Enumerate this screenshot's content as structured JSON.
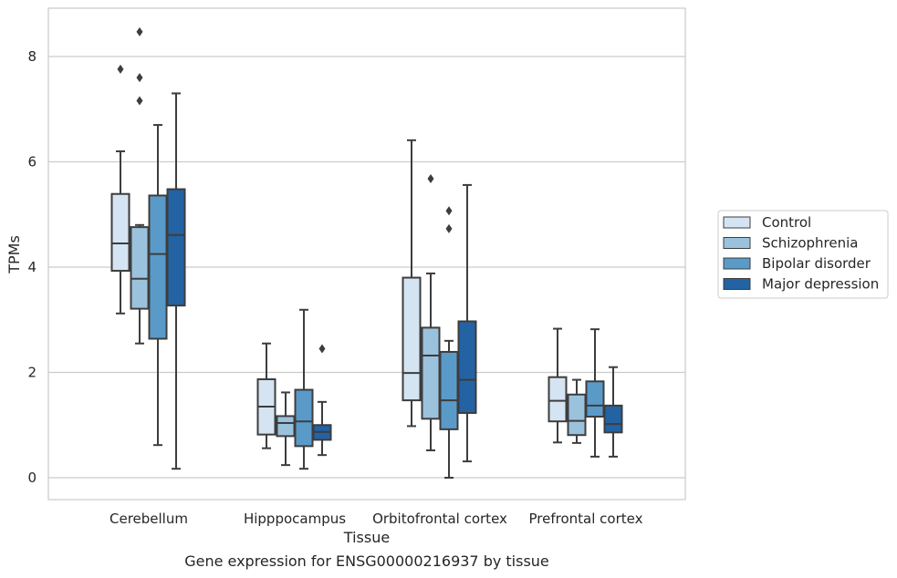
{
  "caption": "Gene expression for ENSG00000216937 by tissue",
  "chart_data": {
    "type": "boxplot",
    "xlabel": "Tissue",
    "ylabel": "TPMs",
    "ylim": [
      -0.4,
      8.9
    ],
    "yticks": [
      0,
      2,
      4,
      6,
      8
    ],
    "grid": "horizontal",
    "legend_position": "right",
    "categories": [
      "Cerebellum",
      "Hipppocampus",
      "Orbitofrontal cortex",
      "Prefrontal cortex"
    ],
    "series": [
      {
        "name": "Control",
        "color": "#d4e4f2",
        "boxes": [
          {
            "whislo": 3.12,
            "q1": 3.93,
            "med": 4.45,
            "q3": 5.39,
            "whishi": 6.2,
            "fliers": [
              7.76
            ]
          },
          {
            "whislo": 0.56,
            "q1": 0.82,
            "med": 1.35,
            "q3": 1.87,
            "whishi": 2.55,
            "fliers": []
          },
          {
            "whislo": 0.98,
            "q1": 1.47,
            "med": 1.99,
            "q3": 3.8,
            "whishi": 6.41,
            "fliers": []
          },
          {
            "whislo": 0.67,
            "q1": 1.07,
            "med": 1.46,
            "q3": 1.91,
            "whishi": 2.83,
            "fliers": []
          }
        ]
      },
      {
        "name": "Schizophrenia",
        "color": "#9bc2dd",
        "boxes": [
          {
            "whislo": 2.55,
            "q1": 3.21,
            "med": 3.78,
            "q3": 4.76,
            "whishi": 4.8,
            "fliers": [
              7.16,
              7.6,
              8.47
            ]
          },
          {
            "whislo": 0.24,
            "q1": 0.79,
            "med": 1.04,
            "q3": 1.17,
            "whishi": 1.62,
            "fliers": []
          },
          {
            "whislo": 0.52,
            "q1": 1.12,
            "med": 2.32,
            "q3": 2.85,
            "whishi": 3.88,
            "fliers": [
              5.68
            ]
          },
          {
            "whislo": 0.66,
            "q1": 0.81,
            "med": 1.08,
            "q3": 1.58,
            "whishi": 1.86,
            "fliers": []
          }
        ]
      },
      {
        "name": "Bipolar disorder",
        "color": "#5a9ac9",
        "boxes": [
          {
            "whislo": 0.62,
            "q1": 2.64,
            "med": 4.25,
            "q3": 5.36,
            "whishi": 6.7,
            "fliers": []
          },
          {
            "whislo": 0.17,
            "q1": 0.6,
            "med": 1.07,
            "q3": 1.67,
            "whishi": 3.19,
            "fliers": []
          },
          {
            "whislo": 0.0,
            "q1": 0.92,
            "med": 1.47,
            "q3": 2.39,
            "whishi": 2.6,
            "fliers": [
              4.73,
              5.07
            ]
          },
          {
            "whislo": 0.4,
            "q1": 1.16,
            "med": 1.37,
            "q3": 1.83,
            "whishi": 2.82,
            "fliers": []
          }
        ]
      },
      {
        "name": "Major depression",
        "color": "#2363a4",
        "boxes": [
          {
            "whislo": 0.17,
            "q1": 3.27,
            "med": 4.61,
            "q3": 5.48,
            "whishi": 7.3,
            "fliers": []
          },
          {
            "whislo": 0.43,
            "q1": 0.72,
            "med": 0.87,
            "q3": 1.0,
            "whishi": 1.44,
            "fliers": [
              2.45
            ]
          },
          {
            "whislo": 0.31,
            "q1": 1.23,
            "med": 1.86,
            "q3": 2.97,
            "whishi": 5.56,
            "fliers": []
          },
          {
            "whislo": 0.4,
            "q1": 0.86,
            "med": 1.02,
            "q3": 1.37,
            "whishi": 2.1,
            "fliers": []
          }
        ]
      }
    ]
  }
}
